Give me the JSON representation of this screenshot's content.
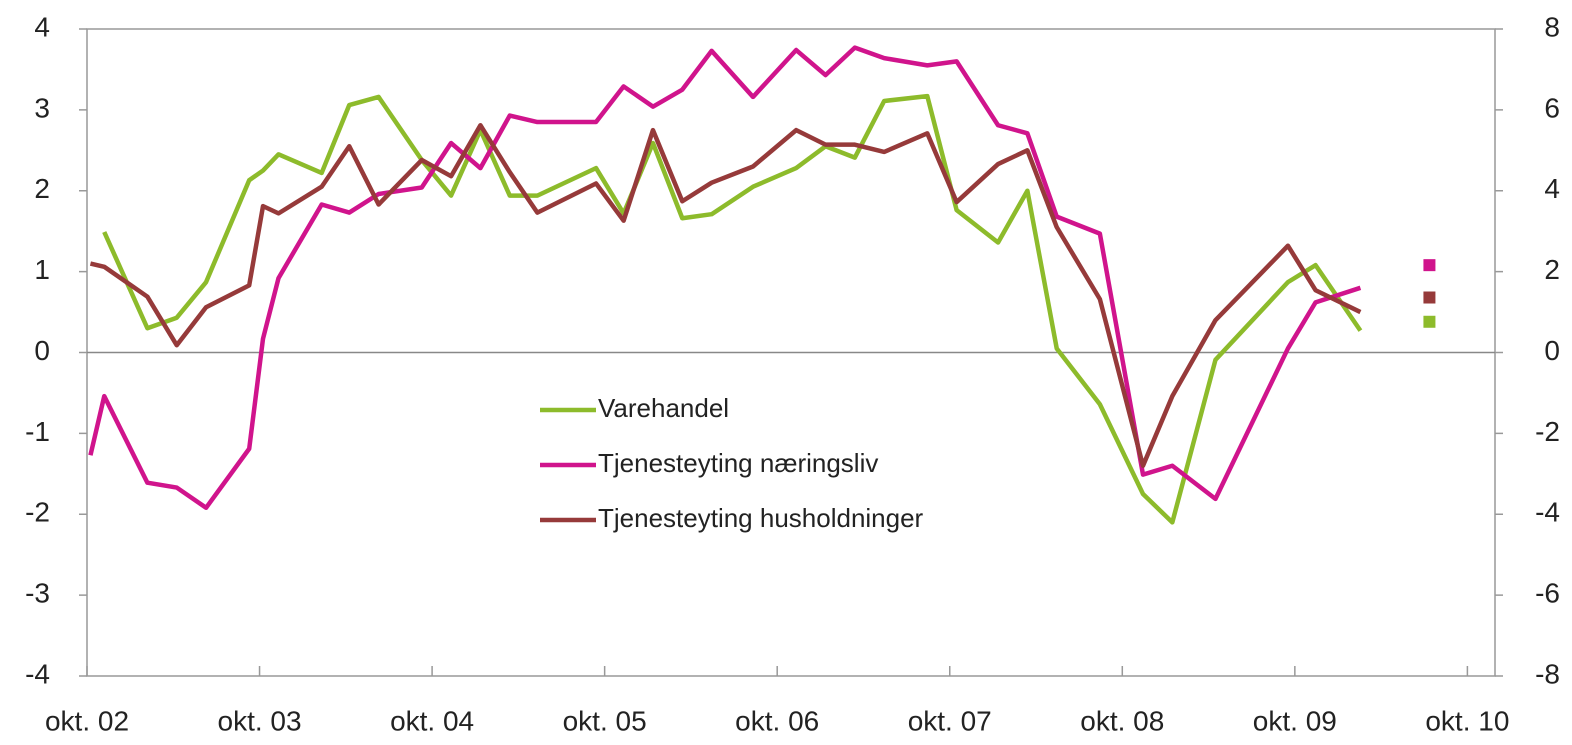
{
  "chart_data": {
    "type": "line",
    "x": [
      2002.77,
      2002.85,
      2003.1,
      2003.27,
      2003.44,
      2003.69,
      2003.77,
      2003.86,
      2004.11,
      2004.27,
      2004.44,
      2004.69,
      2004.86,
      2005.03,
      2005.2,
      2005.36,
      2005.7,
      2005.86,
      2006.03,
      2006.2,
      2006.37,
      2006.61,
      2006.86,
      2007.03,
      2007.2,
      2007.37,
      2007.62,
      2007.79,
      2008.03,
      2008.2,
      2008.37,
      2008.62,
      2008.87,
      2009.04,
      2009.29,
      2009.71,
      2009.87,
      2010.13
    ],
    "series": [
      {
        "name": "Varehandel",
        "color": "#8dbb2b",
        "marker": 0.38,
        "values": [
          null,
          1.49,
          0.3,
          0.43,
          0.87,
          2.13,
          2.25,
          2.45,
          2.22,
          3.06,
          3.16,
          2.38,
          1.94,
          2.75,
          1.94,
          1.94,
          2.28,
          1.72,
          2.59,
          1.66,
          1.71,
          2.05,
          2.28,
          2.55,
          2.41,
          3.11,
          3.17,
          1.76,
          1.36,
          2.0,
          0.05,
          -0.64,
          -1.75,
          -2.1,
          -0.09,
          0.87,
          1.08,
          0.27
        ]
      },
      {
        "name": "Tjenesteyting næringsliv",
        "color": "#d0148c",
        "marker": 1.08,
        "values": [
          -1.27,
          -0.54,
          -1.61,
          -1.67,
          -1.92,
          -1.19,
          0.17,
          0.92,
          1.83,
          1.73,
          1.96,
          2.04,
          2.59,
          2.28,
          2.93,
          2.85,
          2.85,
          3.29,
          3.04,
          3.25,
          3.73,
          3.16,
          3.74,
          3.43,
          3.77,
          3.64,
          3.55,
          3.6,
          2.81,
          2.71,
          1.68,
          1.47,
          -1.51,
          -1.4,
          -1.81,
          0.05,
          0.62,
          0.8
        ]
      },
      {
        "name": "Tjenesteyting husholdninger",
        "color": "#963a3a",
        "marker": 0.68,
        "values": [
          1.1,
          1.06,
          0.69,
          0.09,
          0.56,
          0.83,
          1.81,
          1.72,
          2.05,
          2.55,
          1.83,
          2.38,
          2.18,
          2.81,
          2.23,
          1.73,
          2.09,
          1.63,
          2.75,
          1.87,
          2.1,
          2.3,
          2.75,
          2.57,
          2.57,
          2.48,
          2.71,
          1.86,
          2.33,
          2.5,
          1.55,
          0.66,
          -1.4,
          -0.54,
          0.4,
          1.32,
          0.77,
          0.5
        ]
      }
    ],
    "marker_x": 2010.53,
    "xlim": [
      2002.75,
      2010.91
    ],
    "xticks": [
      {
        "value": 2002.75,
        "label": "okt. 02"
      },
      {
        "value": 2003.75,
        "label": "okt. 03"
      },
      {
        "value": 2004.75,
        "label": "okt. 04"
      },
      {
        "value": 2005.75,
        "label": "okt. 05"
      },
      {
        "value": 2006.75,
        "label": "okt. 06"
      },
      {
        "value": 2007.75,
        "label": "okt. 07"
      },
      {
        "value": 2008.75,
        "label": "okt. 08"
      },
      {
        "value": 2009.75,
        "label": "okt. 09"
      },
      {
        "value": 2010.75,
        "label": "okt. 10"
      }
    ],
    "ylim": [
      -4,
      4
    ],
    "yticks": [
      -4,
      -3,
      -2,
      -1,
      0,
      1,
      2,
      3,
      4
    ],
    "y2lim": [
      -8,
      8
    ],
    "y2ticks": [
      -8,
      -6,
      -4,
      -2,
      0,
      2,
      4,
      6,
      8
    ]
  }
}
